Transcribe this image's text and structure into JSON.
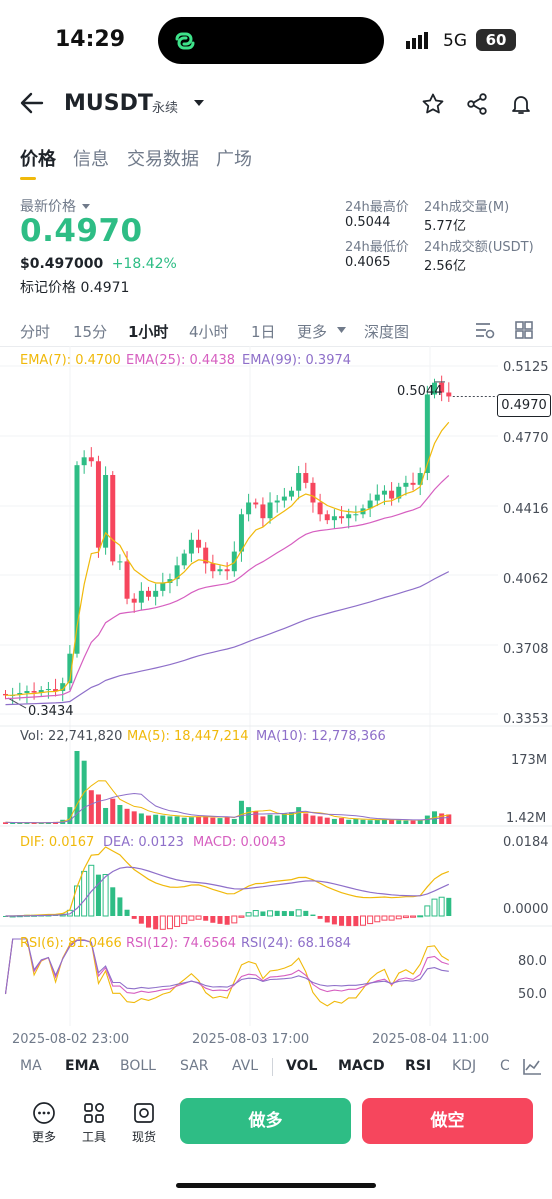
{
  "status": {
    "time": "14:29",
    "network": "5G",
    "battery": "60"
  },
  "header": {
    "symbol": "MUSDT",
    "contract_type": "永续"
  },
  "tabs": [
    "价格",
    "信息",
    "交易数据",
    "广场"
  ],
  "ticker": {
    "last_price_label": "最新价格",
    "last_price": "0.4970",
    "usd_price": "$0.497000",
    "change": "+18.42%",
    "mark_price_label": "标记价格",
    "mark_price": "0.4971",
    "high_label": "24h最高价",
    "high": "0.5044",
    "low_label": "24h最低价",
    "low": "0.4065",
    "vol_label": "24h成交量(M)",
    "vol": "5.77亿",
    "turnover_label": "24h成交额(USDT)",
    "turnover": "2.56亿"
  },
  "timeframes": [
    "分时",
    "15分",
    "1小时",
    "4小时",
    "1日",
    "更多",
    "深度图"
  ],
  "ema_legend": {
    "ema7": "EMA(7): 0.4700",
    "ema25": "EMA(25): 0.4438",
    "ema99": "EMA(99): 0.3974"
  },
  "price_axis": [
    "0.5125",
    "0.4770",
    "0.4416",
    "0.4062",
    "0.3708",
    "0.3353"
  ],
  "current_price_tag": "0.4970",
  "high_marker": "0.5044",
  "low_marker": "0.3434",
  "vol_legend": {
    "vol": "Vol: 22,741,820",
    "ma5": "MA(5): 18,447,214",
    "ma10": "MA(10): 12,778,366"
  },
  "vol_axis": [
    "173M",
    "1.42M"
  ],
  "macd_legend": {
    "dif": "DIF: 0.0167",
    "dea": "DEA: 0.0123",
    "macd": "MACD: 0.0043"
  },
  "macd_axis": [
    "0.0184",
    "0.0000"
  ],
  "rsi_legend": {
    "rsi6": "RSI(6): 81.0466",
    "rsi12": "RSI(12): 74.6564",
    "rsi24": "RSI(24): 68.1684"
  },
  "rsi_axis": [
    "80.0",
    "50.0"
  ],
  "time_axis": [
    "2025-08-02 23:00",
    "2025-08-03 17:00",
    "2025-08-04 11:00"
  ],
  "indicator_tabs": [
    "MA",
    "EMA",
    "BOLL",
    "SAR",
    "AVL",
    "VOL",
    "MACD",
    "RSI",
    "KDJ",
    "C"
  ],
  "tools": [
    "更多",
    "工具",
    "现货"
  ],
  "actions": {
    "long": "做多",
    "short": "做空"
  },
  "colors": {
    "up": "#2ebd85",
    "down": "#f6465d",
    "ema7": "#f0b90b",
    "ema25": "#d65fc0",
    "ema99": "#8e6fc9",
    "accent": "#f0b90b"
  },
  "chart_data": {
    "type": "candlestick",
    "open": [
      0.3455,
      0.3448,
      0.345,
      0.346,
      0.347,
      0.3462,
      0.3475,
      0.348,
      0.347,
      0.351,
      0.366,
      0.462,
      0.466,
      0.464,
      0.42,
      0.457,
      0.413,
      0.413,
      0.394,
      0.392,
      0.398,
      0.395,
      0.398,
      0.402,
      0.404,
      0.411,
      0.417,
      0.424,
      0.42,
      0.412,
      0.408,
      0.409,
      0.408,
      0.418,
      0.437,
      0.443,
      0.442,
      0.435,
      0.443,
      0.444,
      0.446,
      0.449,
      0.458,
      0.453,
      0.443,
      0.437,
      0.434,
      0.436,
      0.435,
      0.437,
      0.437,
      0.44,
      0.444,
      0.447,
      0.449,
      0.445,
      0.451,
      0.453,
      0.452,
      0.458,
      0.498,
      0.504,
      0.499
    ],
    "close": [
      0.3448,
      0.345,
      0.346,
      0.347,
      0.3462,
      0.3475,
      0.348,
      0.347,
      0.351,
      0.366,
      0.462,
      0.466,
      0.464,
      0.42,
      0.457,
      0.413,
      0.413,
      0.394,
      0.392,
      0.398,
      0.395,
      0.398,
      0.402,
      0.404,
      0.411,
      0.417,
      0.424,
      0.42,
      0.412,
      0.408,
      0.409,
      0.408,
      0.418,
      0.437,
      0.443,
      0.442,
      0.435,
      0.443,
      0.444,
      0.446,
      0.449,
      0.458,
      0.453,
      0.443,
      0.437,
      0.434,
      0.436,
      0.435,
      0.437,
      0.437,
      0.44,
      0.444,
      0.447,
      0.449,
      0.445,
      0.451,
      0.453,
      0.452,
      0.458,
      0.498,
      0.504,
      0.499,
      0.497
    ],
    "volume": [
      4,
      3,
      3,
      3,
      3,
      3,
      4,
      5,
      10,
      40,
      173,
      150,
      80,
      70,
      38,
      60,
      45,
      36,
      30,
      25,
      20,
      22,
      20,
      18,
      18,
      15,
      16,
      18,
      20,
      15,
      14,
      16,
      12,
      55,
      40,
      30,
      18,
      22,
      20,
      25,
      28,
      40,
      25,
      20,
      18,
      15,
      12,
      14,
      10,
      12,
      10,
      9,
      10,
      12,
      10,
      9,
      8,
      8,
      10,
      20,
      30,
      25,
      22.7
    ],
    "ylim": [
      0.3353,
      0.5125
    ]
  }
}
